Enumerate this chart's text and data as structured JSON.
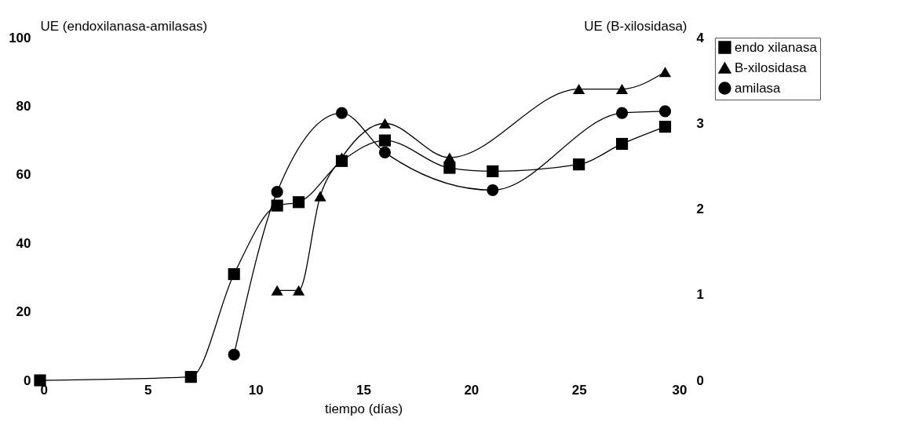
{
  "chart_data": {
    "type": "line",
    "xlabel": "tiempo (días)",
    "ylabel": "UE (endoxilanasa-amilasas)",
    "y2label": "UE (B-xilosidasa)",
    "xlim": [
      0,
      30
    ],
    "xticks": [
      0,
      5,
      10,
      15,
      20,
      25,
      30
    ],
    "ylim": [
      0,
      100
    ],
    "yticks": [
      0,
      20,
      40,
      60,
      80,
      100
    ],
    "y2lim": [
      0,
      4
    ],
    "y2ticks": [
      0,
      1,
      2,
      3,
      4
    ],
    "grid": false,
    "legend": "right",
    "line_style": "solid",
    "series": [
      {
        "name": "endo xilanasa",
        "color": "#000000",
        "marker": "square",
        "x": [
          0,
          7,
          9,
          11,
          12,
          14,
          16,
          19,
          21,
          25,
          27,
          29
        ],
        "values": [
          0,
          1,
          31,
          51,
          52,
          64,
          70,
          62,
          61,
          63,
          69,
          74
        ]
      },
      {
        "name": "B-xilosidasa",
        "color": "#000000",
        "marker": "triangle",
        "axis": "y2",
        "x": [
          11,
          12,
          13,
          14,
          16,
          19,
          25,
          27,
          29
        ],
        "values": [
          1.05,
          1.05,
          2.15,
          2.6,
          3.0,
          2.6,
          3.4,
          3.4,
          3.6
        ]
      },
      {
        "name": "amilasa",
        "color": "#000000",
        "marker": "circle",
        "x": [
          9,
          11,
          14,
          16,
          21,
          27,
          29
        ],
        "values": [
          7.5,
          55,
          78,
          66.5,
          55.5,
          78,
          78.5
        ]
      }
    ]
  }
}
